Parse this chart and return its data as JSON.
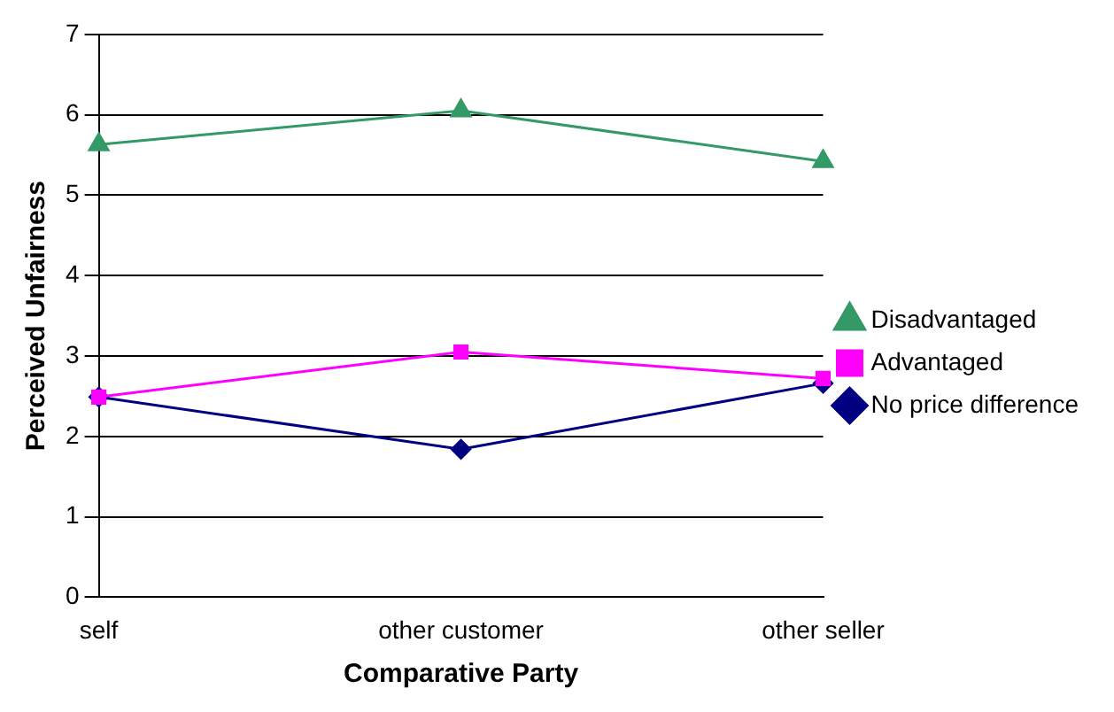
{
  "chart_data": {
    "type": "line",
    "xlabel": "Comparative Party",
    "ylabel": "Perceived Unfairness",
    "categories": [
      "self",
      "other customer",
      "other seller"
    ],
    "series": [
      {
        "name": "No price difference",
        "color": "#000080",
        "marker": "diamond",
        "values": [
          2.49,
          1.84,
          2.66
        ]
      },
      {
        "name": "Advantaged",
        "color": "#ff00ff",
        "marker": "square",
        "values": [
          2.49,
          3.05,
          2.72
        ]
      },
      {
        "name": "Disadvantaged",
        "color": "#339966",
        "marker": "triangle",
        "values": [
          5.63,
          6.05,
          5.42
        ]
      }
    ],
    "ylim": [
      0,
      7
    ],
    "yticks": [
      0,
      1,
      2,
      3,
      4,
      5,
      6,
      7
    ],
    "grid": "y",
    "legend": "right"
  }
}
